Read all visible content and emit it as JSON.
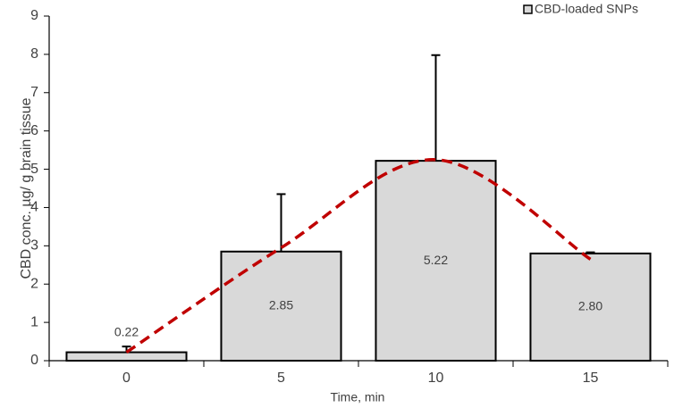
{
  "chart_data": {
    "type": "bar",
    "x_label": "Time, min",
    "y_label": "CBD conc. µg/ g brain tissue",
    "categories": [
      "0",
      "5",
      "10",
      "15"
    ],
    "series": [
      {
        "name": "CBD-loaded SNPs",
        "color": "#d9d9d9",
        "values": [
          0.22,
          2.85,
          5.22,
          2.8
        ],
        "value_labels": [
          "0.22",
          "2.85",
          "5.22",
          "2.80"
        ],
        "errors": [
          0.15,
          1.5,
          2.76,
          0.03
        ]
      }
    ],
    "trend": {
      "color": "#c00000",
      "values": [
        0.22,
        2.95,
        5.25,
        2.65
      ]
    },
    "ylim": [
      0,
      9
    ],
    "yticks": [
      0,
      1,
      2,
      3,
      4,
      5,
      6,
      7,
      8,
      9
    ],
    "legend": "top-right"
  }
}
